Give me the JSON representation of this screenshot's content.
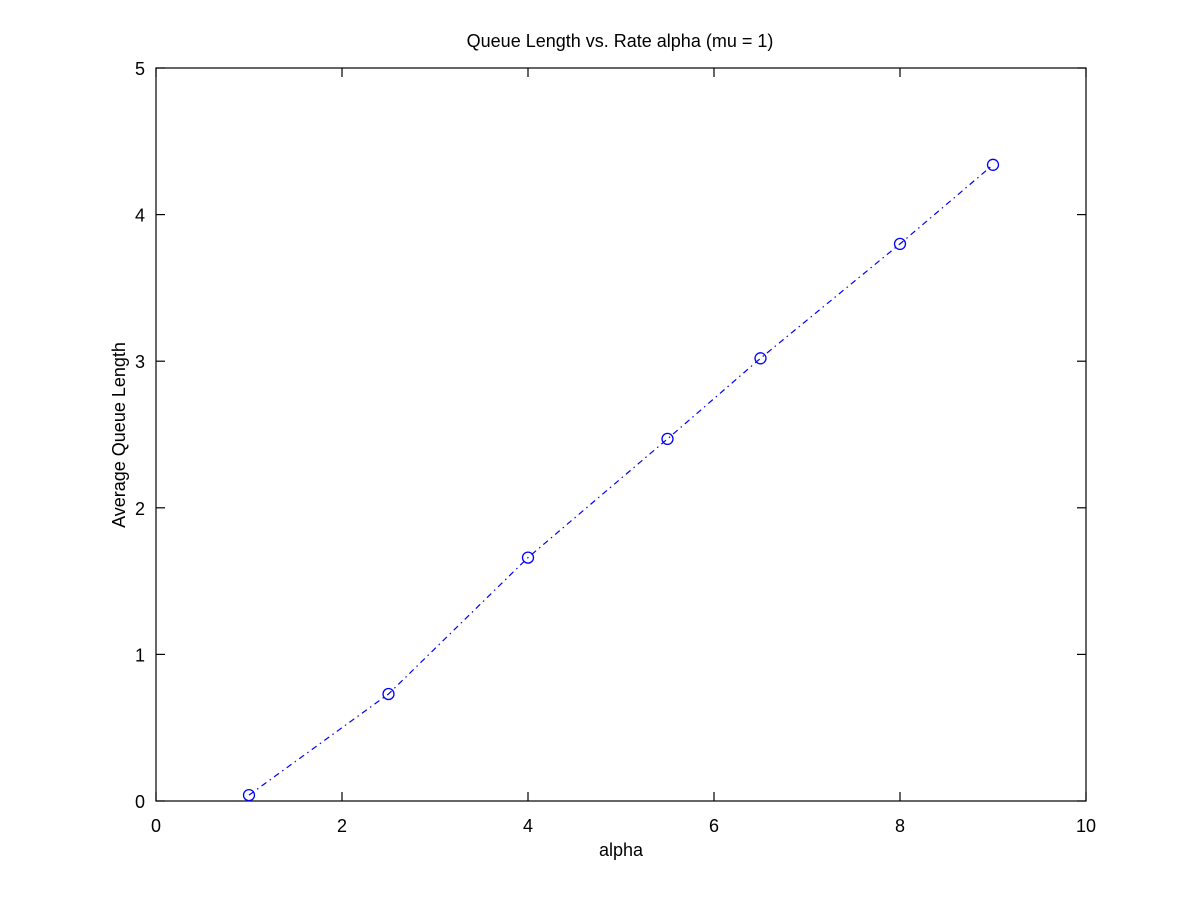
{
  "chart_data": {
    "type": "line",
    "title": "Queue Length vs. Rate alpha (mu = 1)",
    "xlabel": "alpha",
    "ylabel": "Average Queue Length",
    "xlim": [
      0,
      10
    ],
    "ylim": [
      0,
      5
    ],
    "xticks": [
      "0",
      "2",
      "4",
      "6",
      "8",
      "10"
    ],
    "yticks": [
      "0",
      "1",
      "2",
      "3",
      "4",
      "5"
    ],
    "grid": false,
    "series": [
      {
        "x": [
          1,
          2.5,
          4,
          5.5,
          6.5,
          8,
          9
        ],
        "y": [
          0.04,
          0.73,
          1.66,
          2.47,
          3.02,
          3.8,
          4.34
        ],
        "color": "#0000ff",
        "line_style": "dash-dot",
        "marker": "circle"
      }
    ]
  }
}
